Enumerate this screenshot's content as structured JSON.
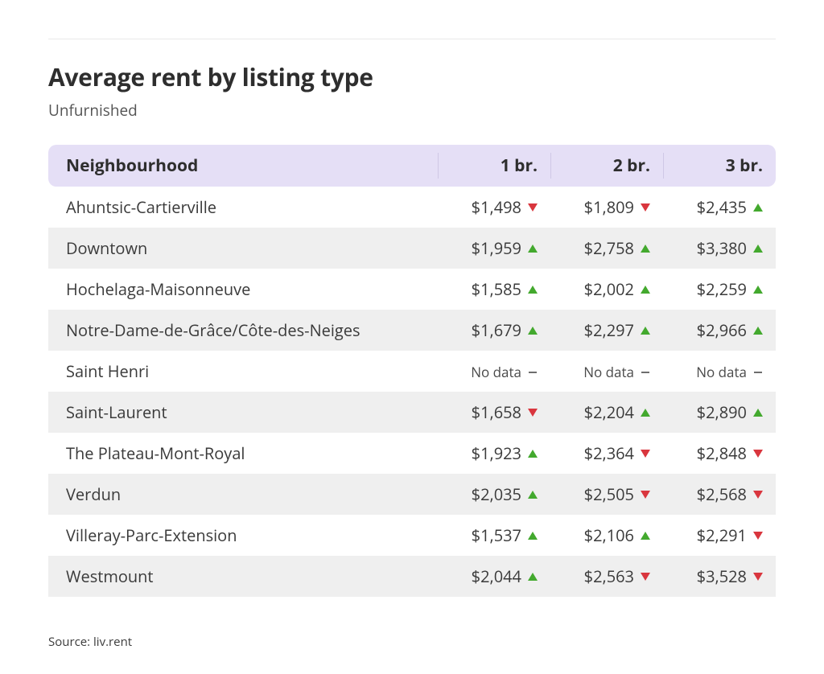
{
  "title": "Average rent by listing type",
  "subtitle": "Unfurnished",
  "source_label": "Source: liv.rent",
  "no_data_label": "No data",
  "colors": {
    "header_bg": "#e5dff6",
    "row_alt_bg": "#efefef",
    "text": "#3a3a3a",
    "subtitle": "#545454",
    "rule": "#e9e9e9",
    "up": "#43a92e",
    "down": "#d9363e",
    "none": "#6e6e6e"
  },
  "columns": [
    {
      "key": "name",
      "label": "Neighbourhood"
    },
    {
      "key": "br1",
      "label": "1 br."
    },
    {
      "key": "br2",
      "label": "2 br."
    },
    {
      "key": "br3",
      "label": "3 br."
    }
  ],
  "rows": [
    {
      "name": "Ahuntsic-Cartierville",
      "br1": {
        "value": "$1,498",
        "trend": "down"
      },
      "br2": {
        "value": "$1,809",
        "trend": "down"
      },
      "br3": {
        "value": "$2,435",
        "trend": "up"
      }
    },
    {
      "name": "Downtown",
      "br1": {
        "value": "$1,959",
        "trend": "up"
      },
      "br2": {
        "value": "$2,758",
        "trend": "up"
      },
      "br3": {
        "value": "$3,380",
        "trend": "up"
      }
    },
    {
      "name": "Hochelaga-Maisonneuve",
      "br1": {
        "value": "$1,585",
        "trend": "up"
      },
      "br2": {
        "value": "$2,002",
        "trend": "up"
      },
      "br3": {
        "value": "$2,259",
        "trend": "up"
      }
    },
    {
      "name": "Notre-Dame-de-Grâce/Côte-des-Neiges",
      "br1": {
        "value": "$1,679",
        "trend": "up"
      },
      "br2": {
        "value": "$2,297",
        "trend": "up"
      },
      "br3": {
        "value": "$2,966",
        "trend": "up"
      }
    },
    {
      "name": "Saint Henri",
      "br1": {
        "value": null,
        "trend": "none"
      },
      "br2": {
        "value": null,
        "trend": "none"
      },
      "br3": {
        "value": null,
        "trend": "none"
      }
    },
    {
      "name": "Saint-Laurent",
      "br1": {
        "value": "$1,658",
        "trend": "down"
      },
      "br2": {
        "value": "$2,204",
        "trend": "up"
      },
      "br3": {
        "value": "$2,890",
        "trend": "up"
      }
    },
    {
      "name": "The Plateau-Mont-Royal",
      "br1": {
        "value": "$1,923",
        "trend": "up"
      },
      "br2": {
        "value": "$2,364",
        "trend": "down"
      },
      "br3": {
        "value": "$2,848",
        "trend": "down"
      }
    },
    {
      "name": "Verdun",
      "br1": {
        "value": "$2,035",
        "trend": "up"
      },
      "br2": {
        "value": "$2,505",
        "trend": "down"
      },
      "br3": {
        "value": "$2,568",
        "trend": "down"
      }
    },
    {
      "name": "Villeray-Parc-Extension",
      "br1": {
        "value": "$1,537",
        "trend": "up"
      },
      "br2": {
        "value": "$2,106",
        "trend": "up"
      },
      "br3": {
        "value": "$2,291",
        "trend": "down"
      }
    },
    {
      "name": "Westmount",
      "br1": {
        "value": "$2,044",
        "trend": "up"
      },
      "br2": {
        "value": "$2,563",
        "trend": "down"
      },
      "br3": {
        "value": "$3,528",
        "trend": "down"
      }
    }
  ]
}
